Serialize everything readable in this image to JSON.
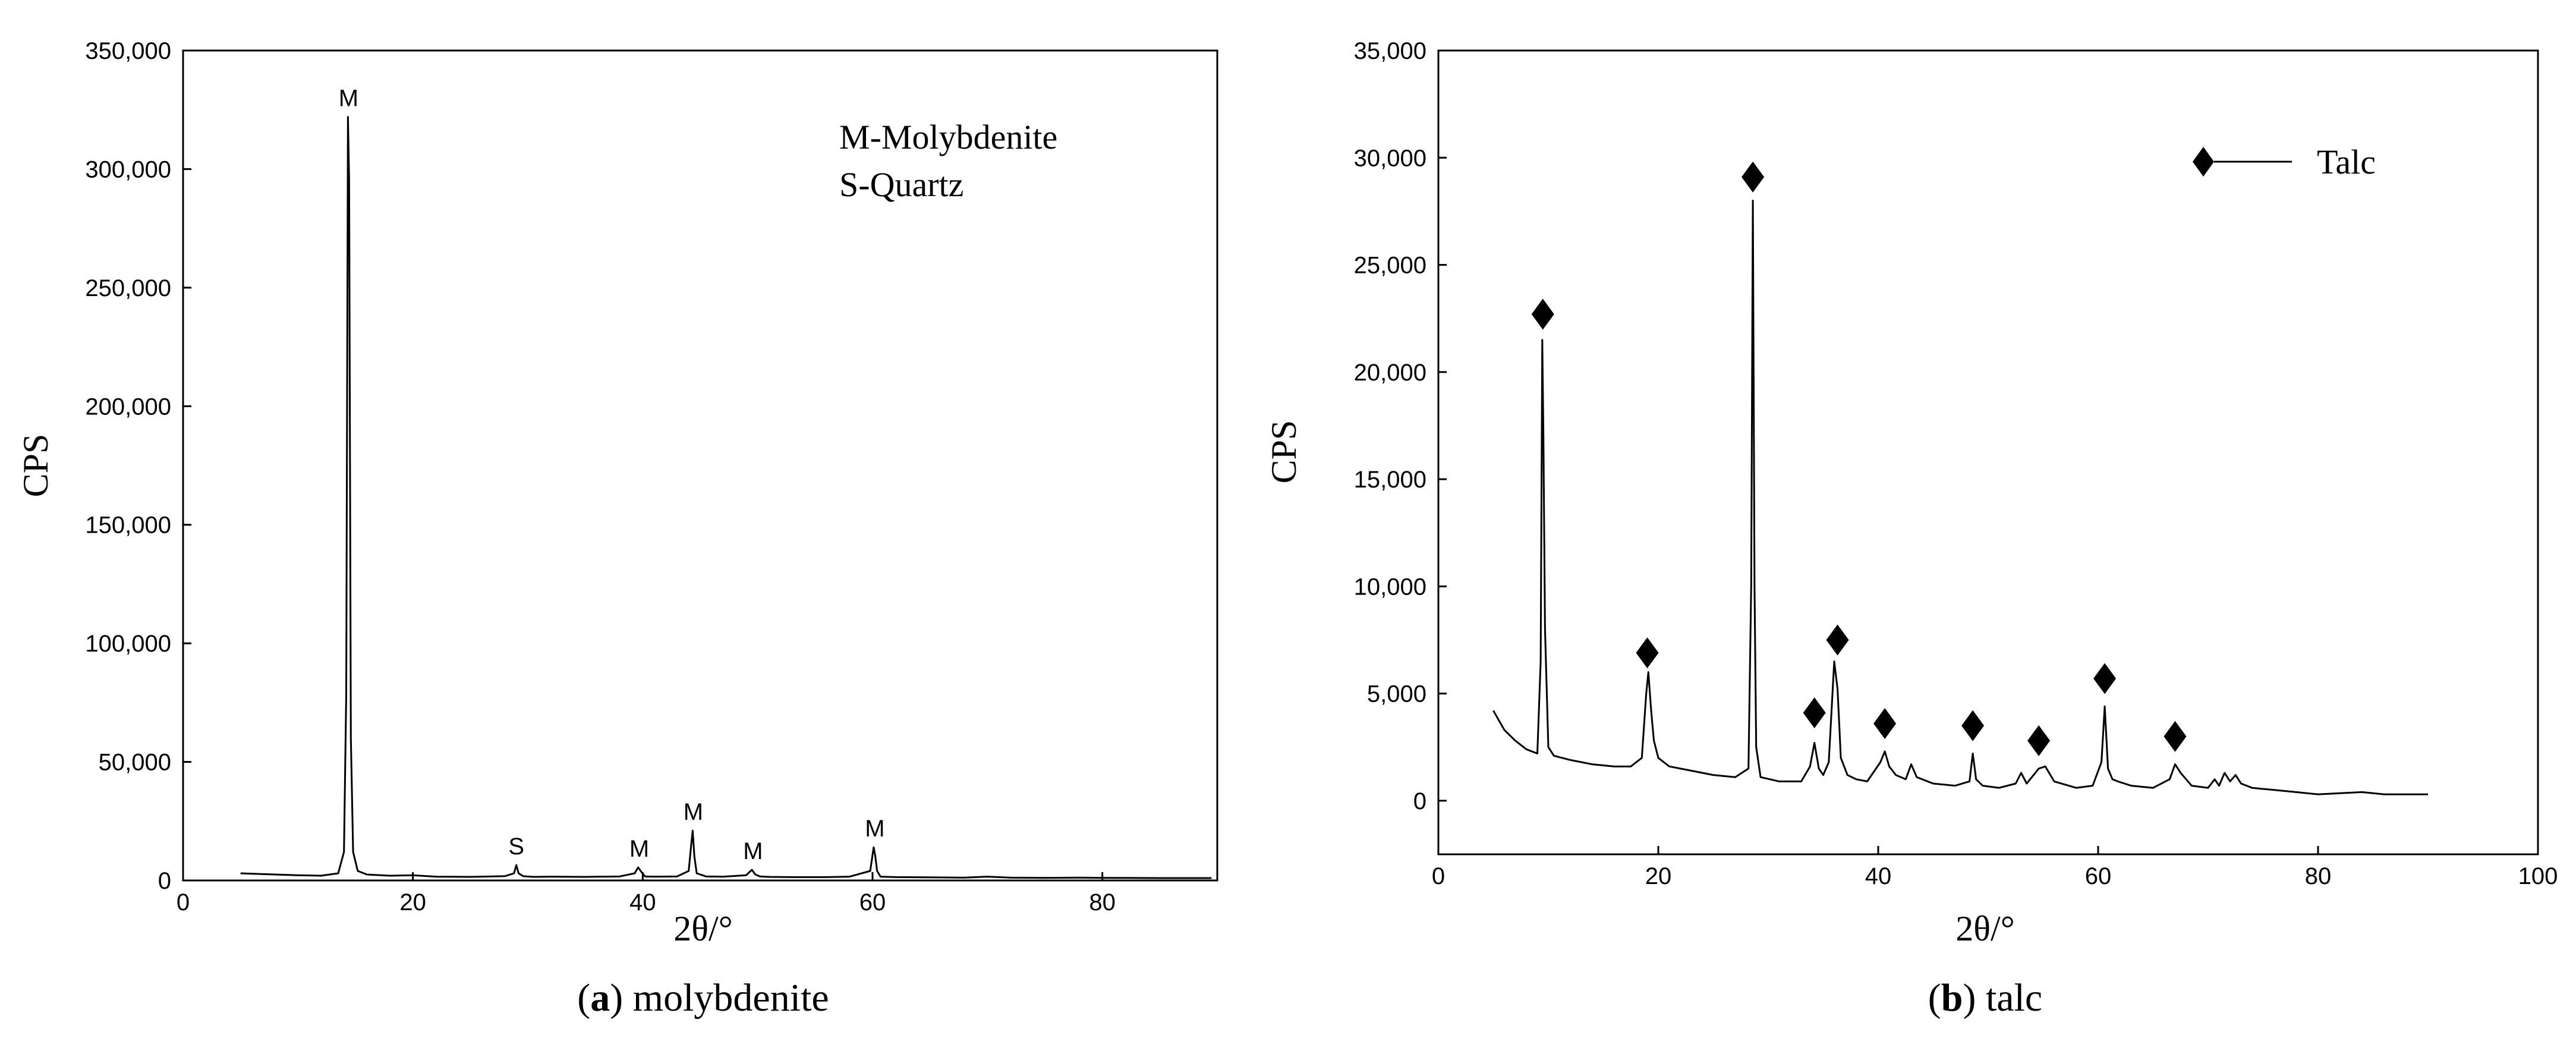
{
  "chart_data": [
    {
      "type": "line",
      "caption": {
        "open": "(",
        "letter": "a",
        "text": ") molybdenite"
      },
      "xlabel": "2θ/°",
      "ylabel": "CPS",
      "xlim": [
        0,
        90
      ],
      "ylim": [
        0,
        350000
      ],
      "x_ticks": [
        0,
        20,
        40,
        60,
        80
      ],
      "x_tick_labels": [
        "0",
        "20",
        "40",
        "60",
        "80"
      ],
      "y_ticks": [
        0,
        50000,
        100000,
        150000,
        200000,
        250000,
        300000,
        350000
      ],
      "y_tick_labels": [
        "0",
        "50,000",
        "100,000",
        "150,000",
        "200,000",
        "250,000",
        "300,000",
        "350,000"
      ],
      "grid": false,
      "legend": {
        "placement": "top-right",
        "entries": [
          "M-Molybdenite",
          "S-Quartz"
        ]
      },
      "series": [
        {
          "x": [
            5,
            8,
            10,
            12,
            13.5,
            14.0,
            14.2,
            14.35,
            14.45,
            14.6,
            14.8,
            15.2,
            16,
            18,
            20,
            22,
            25,
            28,
            28.8,
            29.0,
            29.2,
            29.6,
            30.5,
            32,
            35,
            38,
            39.3,
            39.6,
            39.9,
            40.2,
            41,
            43,
            44.0,
            44.2,
            44.35,
            44.5,
            44.7,
            45.5,
            47,
            49.0,
            49.5,
            49.8,
            50.2,
            51,
            53,
            56,
            58,
            59.8,
            60.1,
            60.25,
            60.4,
            60.7,
            62,
            65,
            68,
            70,
            72,
            75,
            78,
            80,
            85,
            89.5
          ],
          "y": [
            3000,
            2500,
            2200,
            2000,
            3000,
            12000,
            78000,
            322000,
            295000,
            60000,
            12000,
            4000,
            2500,
            2000,
            2200,
            1600,
            1500,
            1800,
            3000,
            6500,
            3000,
            1800,
            1500,
            1600,
            1500,
            1700,
            3000,
            5500,
            3500,
            1700,
            1600,
            1700,
            4000,
            14000,
            21000,
            10000,
            3000,
            1700,
            1600,
            2200,
            4500,
            2500,
            1700,
            1500,
            1400,
            1400,
            1600,
            4000,
            14000,
            10000,
            4000,
            1600,
            1400,
            1300,
            1200,
            1600,
            1200,
            1100,
            1200,
            1100,
            1000,
            1000
          ]
        }
      ],
      "annotations": [
        {
          "text": "M",
          "x": 14.4,
          "y": 322000
        },
        {
          "text": "S",
          "x": 29.0,
          "y": 6500
        },
        {
          "text": "M",
          "x": 39.7,
          "y": 5500
        },
        {
          "text": "M",
          "x": 44.4,
          "y": 21000
        },
        {
          "text": "M",
          "x": 49.6,
          "y": 4500
        },
        {
          "text": "M",
          "x": 60.2,
          "y": 14000
        }
      ]
    },
    {
      "type": "line",
      "caption": {
        "open": "(",
        "letter": "b",
        "text": ") talc"
      },
      "xlabel": "2θ/°",
      "ylabel": "CPS",
      "xlim": [
        0,
        100
      ],
      "ylim": [
        -2500,
        35000
      ],
      "x_ticks": [
        0,
        20,
        40,
        60,
        80,
        100
      ],
      "x_tick_labels": [
        "0",
        "20",
        "40",
        "60",
        "80",
        "100"
      ],
      "y_ticks": [
        0,
        5000,
        10000,
        15000,
        20000,
        25000,
        30000,
        35000
      ],
      "y_tick_labels": [
        "0",
        "5,000",
        "10,000",
        "15,000",
        "20,000",
        "25,000",
        "30,000",
        "35,000"
      ],
      "grid": false,
      "legend": {
        "placement": "top-right",
        "entries": [
          "Talc"
        ]
      },
      "series": [
        {
          "name": "Talc",
          "x": [
            5,
            6,
            7,
            8,
            9,
            9.3,
            9.45,
            9.55,
            9.7,
            10.0,
            10.5,
            12,
            14,
            16,
            17.5,
            18.5,
            18.9,
            19.1,
            19.35,
            19.6,
            20.0,
            21,
            23,
            25,
            27,
            28.2,
            28.45,
            28.6,
            28.75,
            28.9,
            29.3,
            31,
            33,
            33.8,
            34.2,
            34.6,
            35.0,
            35.5,
            36.0,
            36.3,
            36.6,
            37.2,
            38,
            39,
            40.2,
            40.6,
            41.0,
            41.6,
            42.5,
            43.0,
            43.5,
            45,
            47,
            48.3,
            48.6,
            48.9,
            49.5,
            51,
            52.5,
            53.0,
            53.5,
            54.6,
            55.2,
            56,
            58,
            59.5,
            60.3,
            60.6,
            60.9,
            61.3,
            61.8,
            63,
            65,
            66.5,
            67.0,
            67.5,
            68.5,
            70,
            70.6,
            71,
            71.5,
            72,
            72.5,
            73,
            74,
            76,
            78,
            80,
            82,
            84,
            86,
            88,
            90
          ],
          "y": [
            4200,
            3300,
            2800,
            2400,
            2200,
            6500,
            21500,
            17000,
            8000,
            2500,
            2100,
            1900,
            1700,
            1600,
            1600,
            2000,
            5000,
            6000,
            4200,
            2800,
            2000,
            1600,
            1400,
            1200,
            1100,
            1500,
            10000,
            28000,
            10000,
            2500,
            1100,
            900,
            900,
            1600,
            2700,
            1500,
            1200,
            1800,
            6500,
            5200,
            2000,
            1200,
            1000,
            900,
            1800,
            2300,
            1600,
            1200,
            1000,
            1700,
            1100,
            800,
            700,
            900,
            2200,
            1000,
            700,
            600,
            800,
            1300,
            800,
            1500,
            1600,
            900,
            600,
            700,
            1800,
            4400,
            1500,
            1000,
            900,
            700,
            600,
            1000,
            1700,
            1300,
            700,
            600,
            1000,
            700,
            1300,
            900,
            1200,
            800,
            600,
            500,
            400,
            300,
            350,
            400,
            300,
            300,
            300
          ]
        }
      ],
      "markers": [
        {
          "x": 9.5,
          "y": 22700
        },
        {
          "x": 19.0,
          "y": 6900
        },
        {
          "x": 28.6,
          "y": 29100
        },
        {
          "x": 34.2,
          "y": 4100
        },
        {
          "x": 36.3,
          "y": 7500
        },
        {
          "x": 40.6,
          "y": 3600
        },
        {
          "x": 48.6,
          "y": 3500
        },
        {
          "x": 54.6,
          "y": 2800
        },
        {
          "x": 60.6,
          "y": 5700
        },
        {
          "x": 67.0,
          "y": 3000
        }
      ]
    }
  ]
}
